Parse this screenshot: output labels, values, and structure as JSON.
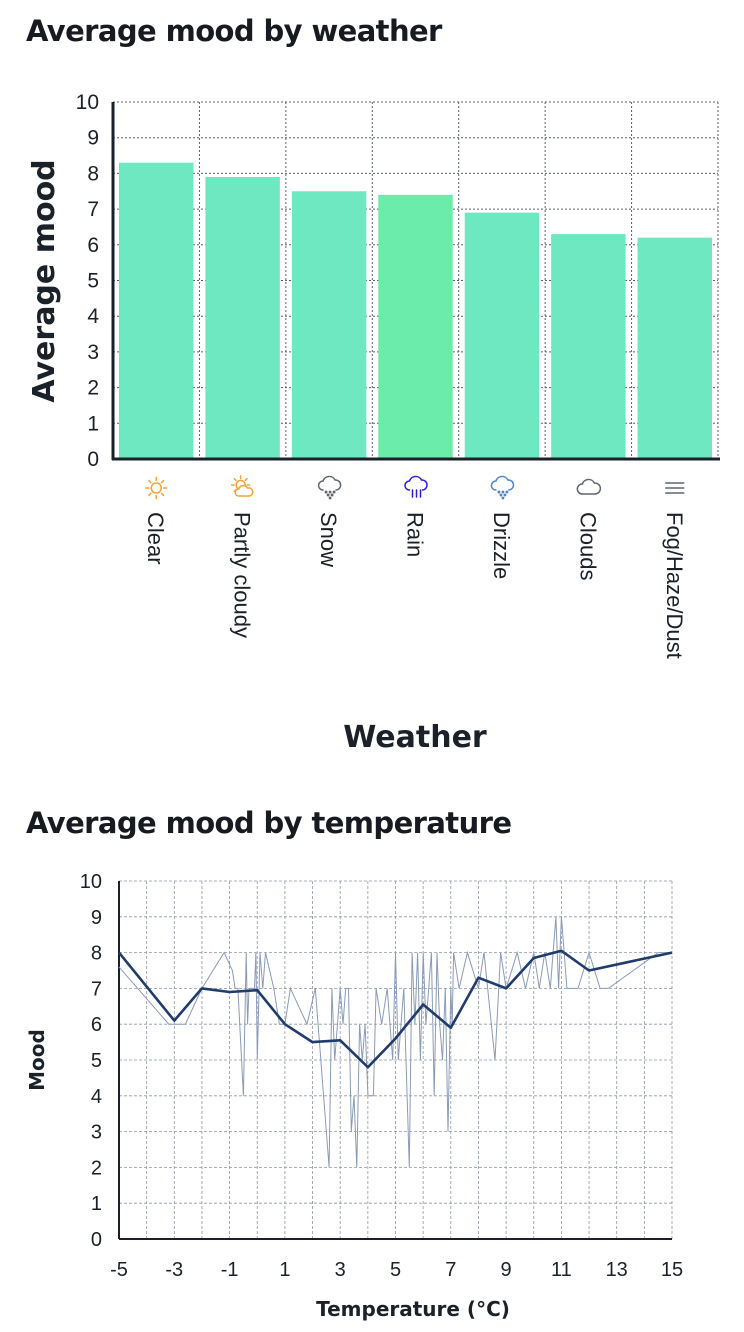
{
  "charts": {
    "weather": {
      "title": "Average mood by weather"
    },
    "temperature": {
      "title": "Average mood by temperature"
    }
  },
  "colors": {
    "bar": "#6ee8c0",
    "bar_highlight": "#6cecaa",
    "axis": "#1b2129",
    "grid": "#8f98a6",
    "icon_sun": "#f2a33a",
    "icon_rain": "#2b1fd6",
    "icon_drizzle": "#4f86c9",
    "icon_gray": "#5f6672",
    "avg_line": "#1f3c6b",
    "raw_line": "#8a9bb8"
  },
  "chart_data": [
    {
      "type": "bar",
      "title": "Average mood by weather",
      "xlabel": "Weather",
      "ylabel": "Average mood",
      "categories": [
        "Clear",
        "Partly cloudy",
        "Snow",
        "Rain",
        "Drizzle",
        "Clouds",
        "Fog/Haze/Dust"
      ],
      "icons": [
        "sun-icon",
        "partly-cloudy-icon",
        "snow-icon",
        "rain-icon",
        "drizzle-icon",
        "clouds-icon",
        "fog-icon"
      ],
      "values": [
        8.3,
        7.9,
        7.5,
        7.4,
        6.9,
        6.3,
        6.2
      ],
      "ylim": [
        0,
        10
      ],
      "yticks": [
        0,
        1,
        2,
        3,
        4,
        5,
        6,
        7,
        8,
        9,
        10
      ],
      "grid": true
    },
    {
      "type": "line",
      "title": "Average mood by temperature",
      "xlabel": "Temperature (°C)",
      "ylabel": "Mood",
      "xlim": [
        -5,
        15
      ],
      "ylim": [
        0,
        10
      ],
      "xticks": [
        -5,
        -3,
        -1,
        1,
        3,
        5,
        7,
        9,
        11,
        13,
        15
      ],
      "yticks": [
        0,
        1,
        2,
        3,
        4,
        5,
        6,
        7,
        8,
        9,
        10
      ],
      "grid": true,
      "series": [
        {
          "style": "average",
          "x": [
            -5,
            -3,
            -2,
            -1,
            0,
            1,
            2,
            3,
            4,
            5,
            6,
            7,
            8,
            9,
            10,
            11,
            12,
            15
          ],
          "y": [
            8.0,
            6.1,
            7.0,
            6.9,
            6.95,
            6.0,
            5.5,
            5.55,
            4.8,
            5.6,
            6.55,
            5.9,
            7.3,
            7.0,
            7.85,
            8.05,
            7.5,
            8.0
          ]
        },
        {
          "style": "raw",
          "x": [
            -5,
            -3.2,
            -2.6,
            -2.0,
            -1.2,
            -0.9,
            -0.8,
            -0.7,
            -0.5,
            -0.4,
            -0.35,
            -0.3,
            -0.1,
            -0.05,
            0,
            0.1,
            0.2,
            0.3,
            0.6,
            0.8,
            1.0,
            1.2,
            1.8,
            2.1,
            2.6,
            2.7,
            2.8,
            3.0,
            3.1,
            3.2,
            3.3,
            3.4,
            3.5,
            3.6,
            3.7,
            3.8,
            3.9,
            4.0,
            4.2,
            4.3,
            4.5,
            4.7,
            4.9,
            5.0,
            5.1,
            5.2,
            5.3,
            5.5,
            5.6,
            5.7,
            5.8,
            5.9,
            6.0,
            6.1,
            6.2,
            6.3,
            6.4,
            6.5,
            6.6,
            6.7,
            6.8,
            6.9,
            7.0,
            7.05,
            7.1,
            7.3,
            7.6,
            8.0,
            8.2,
            8.6,
            8.8,
            9.0,
            9.4,
            9.7,
            10.0,
            10.2,
            10.4,
            10.6,
            10.8,
            10.9,
            11.0,
            11.2,
            11.6,
            12.0,
            12.4,
            12.7,
            14.5,
            15
          ],
          "y": [
            7.6,
            6.0,
            6.0,
            7.0,
            8.0,
            7.5,
            7.0,
            7.0,
            4.0,
            8.0,
            6.0,
            7.0,
            7.0,
            8.0,
            5.0,
            8.0,
            7.0,
            8.0,
            7.0,
            6.0,
            6.0,
            7.0,
            6.0,
            7.0,
            2.0,
            7.0,
            5.0,
            7.0,
            6.0,
            7.0,
            7.0,
            3.0,
            4.0,
            2.0,
            6.0,
            5.0,
            6.0,
            4.0,
            4.0,
            7.0,
            6.0,
            7.0,
            5.0,
            8.0,
            5.0,
            6.0,
            7.0,
            2.0,
            8.0,
            6.0,
            8.0,
            5.0,
            8.0,
            6.0,
            7.0,
            8.0,
            4.0,
            8.0,
            6.0,
            5.0,
            7.0,
            3.0,
            7.0,
            6.0,
            8.0,
            7.0,
            8.0,
            7.0,
            8.0,
            5.0,
            8.0,
            7.0,
            8.0,
            7.0,
            8.0,
            7.0,
            8.0,
            7.0,
            9.0,
            7.0,
            9.0,
            7.0,
            7.0,
            8.0,
            7.0,
            7.0,
            8.0,
            8.0
          ]
        }
      ]
    }
  ]
}
